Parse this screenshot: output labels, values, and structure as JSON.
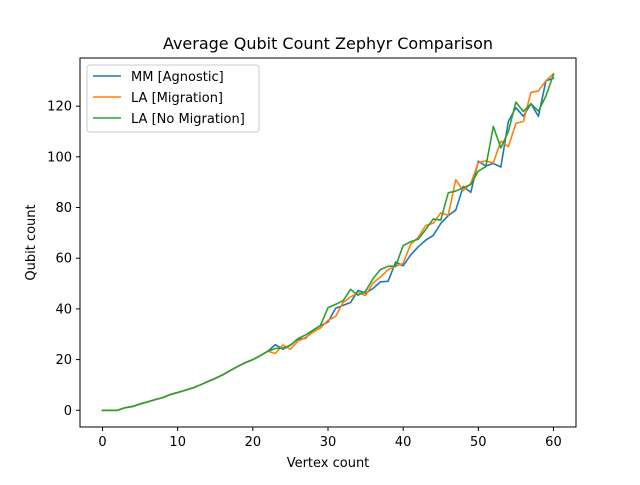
{
  "chart_data": {
    "type": "line",
    "title": "Average Qubit Count Zephyr Comparison",
    "xlabel": "Vertex count",
    "ylabel": "Qubit count",
    "xlim": [
      -3,
      63
    ],
    "ylim": [
      -6.6,
      139
    ],
    "xticks": [
      0,
      10,
      20,
      30,
      40,
      50,
      60
    ],
    "yticks": [
      0,
      20,
      40,
      60,
      80,
      100,
      120
    ],
    "grid": false,
    "legend_position": "top-left",
    "x": [
      0,
      1,
      2,
      3,
      4,
      5,
      6,
      7,
      8,
      9,
      10,
      11,
      12,
      13,
      14,
      15,
      16,
      17,
      18,
      19,
      20,
      21,
      22,
      23,
      24,
      25,
      26,
      27,
      28,
      29,
      30,
      31,
      32,
      33,
      34,
      35,
      36,
      37,
      38,
      39,
      40,
      41,
      42,
      43,
      44,
      45,
      46,
      47,
      48,
      49,
      50,
      51,
      52,
      53,
      54,
      55,
      56,
      57,
      58,
      59,
      60
    ],
    "series": [
      {
        "name": "MM [Agnostic]",
        "color": "#1f77b4",
        "values": [
          0,
          0,
          0,
          1,
          1.5,
          2.5,
          3.3,
          4.2,
          5,
          6.2,
          7,
          7.9,
          8.8,
          10,
          11.3,
          12.6,
          14,
          15.7,
          17.3,
          18.8,
          20,
          21.6,
          23.3,
          25.9,
          24.1,
          25.7,
          28.1,
          28.4,
          31.5,
          33.4,
          34.8,
          40.2,
          41.4,
          42.5,
          47.3,
          46.2,
          48.1,
          50.7,
          50.9,
          58.5,
          57,
          61.3,
          64.5,
          67.1,
          69,
          73.7,
          76.8,
          79,
          88.3,
          86,
          98.3,
          96.4,
          97.4,
          96,
          114,
          119.4,
          116,
          121,
          116,
          130,
          131
        ]
      },
      {
        "name": "LA [Migration]",
        "color": "#ff7f0e",
        "values": [
          0,
          0,
          0,
          1,
          1.5,
          2.5,
          3.3,
          4.2,
          5,
          6.2,
          7,
          7.9,
          8.8,
          10,
          11.3,
          12.6,
          14,
          15.7,
          17.3,
          18.8,
          20,
          21.6,
          23.3,
          22.4,
          25.8,
          24.1,
          27.3,
          28.7,
          30.8,
          32.5,
          35.5,
          37,
          42.5,
          44.7,
          46.4,
          45.3,
          50.3,
          52.6,
          55.5,
          56.8,
          58,
          65.5,
          68.2,
          72.9,
          73.8,
          77.9,
          77,
          91,
          86.7,
          89.5,
          97.7,
          98.4,
          97.6,
          106.2,
          104,
          113.2,
          114,
          125.4,
          126,
          130,
          132.8
        ]
      },
      {
        "name": "LA [No Migration]",
        "color": "#2ca02c",
        "values": [
          0,
          0,
          0,
          1,
          1.5,
          2.5,
          3.3,
          4.2,
          5,
          6.2,
          7,
          7.9,
          8.8,
          10,
          11.3,
          12.6,
          14,
          15.7,
          17.3,
          18.8,
          20,
          21.6,
          23.3,
          24.4,
          24.5,
          25.6,
          28.3,
          29.7,
          31.6,
          33.5,
          40.5,
          41.8,
          43.2,
          47.7,
          45.4,
          47,
          52,
          55.6,
          56.8,
          56.9,
          65,
          66.5,
          67.5,
          71.3,
          75.5,
          75,
          85.8,
          86.5,
          87.8,
          89.1,
          94.4,
          96.1,
          112,
          103.5,
          110,
          121.6,
          117.9,
          121,
          118,
          124,
          132.5
        ]
      }
    ]
  }
}
